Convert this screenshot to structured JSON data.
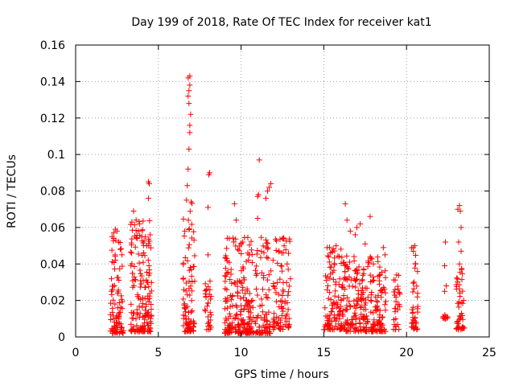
{
  "chart_data": {
    "type": "scatter",
    "title": "Day 199 of 2018, Rate Of TEC Index for receiver kat1",
    "xlabel": "GPS time / hours",
    "ylabel": "ROTI / TECUs",
    "xlim": [
      0,
      25
    ],
    "ylim": [
      0,
      0.16
    ],
    "grid": true,
    "marker": "plus",
    "color": "#ff0000",
    "x_ticks": [
      {
        "value": 0,
        "label": "0"
      },
      {
        "value": 5,
        "label": "5"
      },
      {
        "value": 10,
        "label": "10"
      },
      {
        "value": 15,
        "label": "15"
      },
      {
        "value": 20,
        "label": "20"
      },
      {
        "value": 25,
        "label": "25"
      }
    ],
    "y_ticks": [
      {
        "value": 0,
        "label": "0"
      },
      {
        "value": 0.02,
        "label": "0.02"
      },
      {
        "value": 0.04,
        "label": "0.04"
      },
      {
        "value": 0.06,
        "label": "0.06"
      },
      {
        "value": 0.08,
        "label": "0.08"
      },
      {
        "value": 0.1,
        "label": "0.1"
      },
      {
        "value": 0.12,
        "label": "0.12"
      },
      {
        "value": 0.14,
        "label": "0.14"
      },
      {
        "value": 0.16,
        "label": "0.16"
      }
    ],
    "clusters": [
      {
        "x_start": 2.1,
        "x_end": 2.9,
        "y_min": 0.002,
        "y_max": 0.058,
        "count": 90
      },
      {
        "x_start": 3.3,
        "x_end": 4.6,
        "y_min": 0.003,
        "y_max": 0.065,
        "count": 170
      },
      {
        "x_start": 6.5,
        "x_end": 7.2,
        "y_min": 0.003,
        "y_max": 0.075,
        "count": 90
      },
      {
        "x_start": 7.8,
        "x_end": 8.2,
        "y_min": 0.004,
        "y_max": 0.032,
        "count": 30
      },
      {
        "x_start": 9.0,
        "x_end": 11.8,
        "y_min": 0.002,
        "y_max": 0.055,
        "count": 300
      },
      {
        "x_start": 11.9,
        "x_end": 13.0,
        "y_min": 0.004,
        "y_max": 0.055,
        "count": 90
      },
      {
        "x_start": 15.0,
        "x_end": 16.2,
        "y_min": 0.004,
        "y_max": 0.05,
        "count": 120
      },
      {
        "x_start": 16.2,
        "x_end": 18.8,
        "y_min": 0.003,
        "y_max": 0.045,
        "count": 250
      },
      {
        "x_start": 19.2,
        "x_end": 19.6,
        "y_min": 0.004,
        "y_max": 0.035,
        "count": 30
      },
      {
        "x_start": 20.3,
        "x_end": 20.7,
        "y_min": 0.004,
        "y_max": 0.05,
        "count": 40
      },
      {
        "x_start": 22.2,
        "x_end": 22.5,
        "y_min": 0.01,
        "y_max": 0.013,
        "count": 10
      },
      {
        "x_start": 23.0,
        "x_end": 23.5,
        "y_min": 0.004,
        "y_max": 0.04,
        "count": 50
      }
    ],
    "points": [
      [
        2.2,
        0.055
      ],
      [
        2.3,
        0.057
      ],
      [
        2.4,
        0.059
      ],
      [
        2.5,
        0.058
      ],
      [
        2.6,
        0.052
      ],
      [
        2.7,
        0.048
      ],
      [
        2.8,
        0.045
      ],
      [
        3.4,
        0.063
      ],
      [
        3.5,
        0.069
      ],
      [
        3.8,
        0.058
      ],
      [
        4.0,
        0.055
      ],
      [
        4.3,
        0.05
      ],
      [
        4.4,
        0.085
      ],
      [
        4.45,
        0.084
      ],
      [
        4.4,
        0.076
      ],
      [
        4.5,
        0.056
      ],
      [
        6.6,
        0.058
      ],
      [
        6.7,
        0.075
      ],
      [
        6.75,
        0.083
      ],
      [
        6.8,
        0.092
      ],
      [
        6.85,
        0.103
      ],
      [
        6.9,
        0.112
      ],
      [
        6.9,
        0.116
      ],
      [
        6.95,
        0.122
      ],
      [
        6.85,
        0.128
      ],
      [
        6.8,
        0.132
      ],
      [
        6.85,
        0.135
      ],
      [
        6.9,
        0.138
      ],
      [
        6.8,
        0.142
      ],
      [
        6.9,
        0.143
      ],
      [
        8.0,
        0.071
      ],
      [
        8.05,
        0.089
      ],
      [
        8.1,
        0.09
      ],
      [
        8.0,
        0.045
      ],
      [
        9.6,
        0.073
      ],
      [
        9.7,
        0.064
      ],
      [
        9.8,
        0.048
      ],
      [
        10.1,
        0.052
      ],
      [
        10.5,
        0.045
      ],
      [
        11.0,
        0.065
      ],
      [
        11.0,
        0.077
      ],
      [
        11.05,
        0.078
      ],
      [
        11.1,
        0.097
      ],
      [
        11.5,
        0.076
      ],
      [
        11.6,
        0.08
      ],
      [
        11.7,
        0.082
      ],
      [
        11.8,
        0.084
      ],
      [
        12.5,
        0.054
      ],
      [
        12.6,
        0.05
      ],
      [
        15.2,
        0.049
      ],
      [
        15.4,
        0.046
      ],
      [
        16.3,
        0.073
      ],
      [
        16.4,
        0.064
      ],
      [
        16.6,
        0.058
      ],
      [
        16.9,
        0.056
      ],
      [
        17.0,
        0.06
      ],
      [
        17.2,
        0.062
      ],
      [
        17.5,
        0.051
      ],
      [
        17.8,
        0.066
      ],
      [
        18.0,
        0.04
      ],
      [
        18.6,
        0.049
      ],
      [
        18.7,
        0.045
      ],
      [
        19.4,
        0.034
      ],
      [
        20.4,
        0.049
      ],
      [
        20.5,
        0.05
      ],
      [
        20.55,
        0.04
      ],
      [
        22.35,
        0.052
      ],
      [
        22.3,
        0.039
      ],
      [
        22.4,
        0.028
      ],
      [
        22.3,
        0.025
      ],
      [
        23.1,
        0.07
      ],
      [
        23.2,
        0.072
      ],
      [
        23.25,
        0.069
      ],
      [
        23.3,
        0.06
      ],
      [
        23.15,
        0.052
      ],
      [
        23.3,
        0.047
      ],
      [
        23.2,
        0.04
      ]
    ]
  }
}
